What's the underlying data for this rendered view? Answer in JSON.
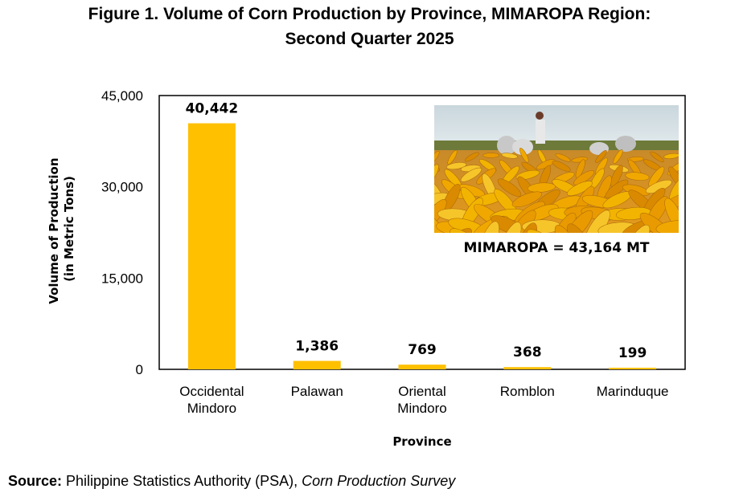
{
  "title_line1": "Figure 1. Volume of Corn Production by Province, MIMAROPA Region:",
  "title_line2": "Second Quarter 2025",
  "chart_data": {
    "type": "bar",
    "categories": [
      [
        "Occidental",
        "Mindoro"
      ],
      [
        "Palawan"
      ],
      [
        "Oriental",
        "Mindoro"
      ],
      [
        "Romblon"
      ],
      [
        "Marinduque"
      ]
    ],
    "values": [
      40442,
      1386,
      769,
      368,
      199
    ],
    "data_labels": [
      "40,442",
      "1,386",
      "769",
      "368",
      "199"
    ],
    "ylabel_lines": [
      "Volume of Production",
      "(in Metric Tons)"
    ],
    "xlabel": "Province",
    "ylim": [
      0,
      45000
    ],
    "yticks": [
      0,
      15000,
      30000,
      45000
    ],
    "ytick_labels": [
      "0",
      "15,000",
      "30,000",
      "45,000"
    ],
    "bar_color": "#FFC000",
    "grid": false
  },
  "annotation": "MIMAROPA = 43,164 MT",
  "photo_icon": "corn-harvest-photo",
  "source": {
    "label": "Source:",
    "text": " Philippine Statistics Authority (PSA), ",
    "italic": "Corn Production Survey"
  }
}
